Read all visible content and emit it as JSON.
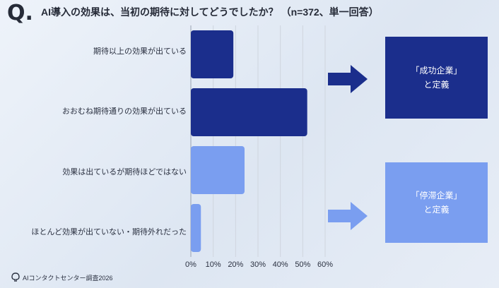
{
  "header": {
    "q_mark": "Q.",
    "question": "AI導入の効果は、当初の期待に対してどうでしたか？",
    "meta": "（n=372、単一回答）"
  },
  "chart_data": {
    "type": "bar",
    "orientation": "horizontal",
    "categories": [
      "期待以上の効果が出ている",
      "おおむね期待通りの効果が出ている",
      "効果は出ているが期待ほどではない",
      "ほとんど効果が出ていない・期待外れだった"
    ],
    "values": [
      19,
      52,
      24,
      4.5
    ],
    "xlim": [
      0,
      60
    ],
    "xticks": [
      "0%",
      "10%",
      "20%",
      "30%",
      "40%",
      "50%",
      "60%"
    ],
    "grid": true,
    "colors": [
      "#1b2e8c",
      "#1b2e8c",
      "#7a9ef0",
      "#7a9ef0"
    ]
  },
  "definitions": {
    "success": {
      "line1": "「成功企業」",
      "line2": "と定義"
    },
    "stagnant": {
      "line1": "「停滞企業」",
      "line2": "と定義"
    }
  },
  "colors": {
    "dark": "#1b2e8c",
    "light": "#7a9ef0"
  },
  "footer": {
    "source": "AIコンタクトセンター調査2026",
    "icon": "logo-icon"
  }
}
